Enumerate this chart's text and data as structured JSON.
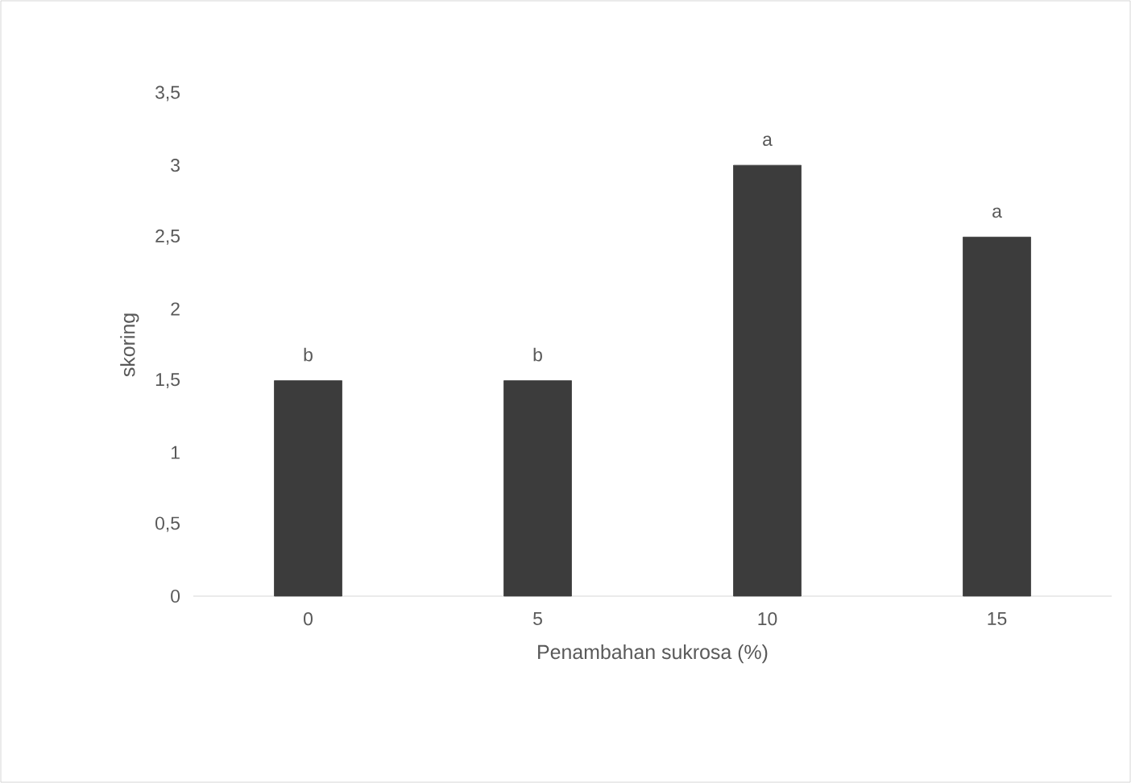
{
  "chart_data": {
    "type": "bar",
    "xlabel": "Penambahan sukrosa (%)",
    "ylabel": "skoring",
    "categories": [
      "0",
      "5",
      "10",
      "15"
    ],
    "values": [
      1.5,
      1.5,
      3,
      2.5
    ],
    "color": "#3c3c3c",
    "ylim": [
      0,
      3.5
    ],
    "yticks": [
      0,
      {
        "value": 0.5,
        "label": "0,5"
      },
      1,
      {
        "value": 1.5,
        "label": "1,5"
      },
      2,
      {
        "value": 2.5,
        "label": "2,5"
      },
      3,
      {
        "value": 3.5,
        "label": "3,5"
      }
    ],
    "annotations": [
      {
        "text": "b",
        "x": "0",
        "y": 1.5
      },
      {
        "text": "b",
        "x": "5",
        "y": 1.5
      },
      {
        "text": "a",
        "x": "10",
        "y": 3
      },
      {
        "text": "a",
        "x": "15",
        "y": 2.5
      }
    ]
  }
}
